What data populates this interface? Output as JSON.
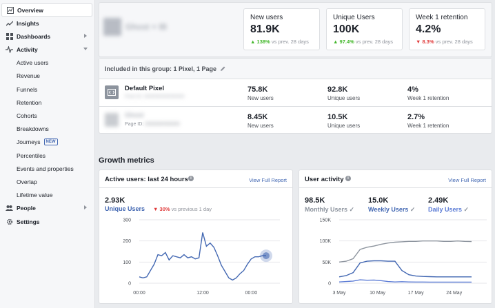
{
  "sidebar": {
    "items": [
      {
        "label": "Overview",
        "icon": "overview-icon",
        "level": "top",
        "active": true
      },
      {
        "label": "Insights",
        "icon": "insights-icon",
        "level": "top"
      },
      {
        "label": "Dashboards",
        "icon": "dashboards-icon",
        "level": "top",
        "chevron": "right"
      },
      {
        "label": "Activity",
        "icon": "activity-icon",
        "level": "top",
        "chevron": "down"
      },
      {
        "label": "Active users",
        "level": "sub"
      },
      {
        "label": "Revenue",
        "level": "sub"
      },
      {
        "label": "Funnels",
        "level": "sub"
      },
      {
        "label": "Retention",
        "level": "sub"
      },
      {
        "label": "Cohorts",
        "level": "sub"
      },
      {
        "label": "Breakdowns",
        "level": "sub"
      },
      {
        "label": "Journeys",
        "level": "sub",
        "badge": "NEW"
      },
      {
        "label": "Percentiles",
        "level": "sub"
      },
      {
        "label": "Events and properties",
        "level": "sub"
      },
      {
        "label": "Overlap",
        "level": "sub"
      },
      {
        "label": "Lifetime value",
        "level": "sub"
      },
      {
        "label": "People",
        "icon": "people-icon",
        "level": "top",
        "chevron": "right"
      },
      {
        "label": "Settings",
        "icon": "settings-icon",
        "level": "top"
      }
    ]
  },
  "header": {
    "app_name_blurred": "Ghost + IB",
    "kpis": [
      {
        "label": "New users",
        "value": "81.9K",
        "change": "138%",
        "direction": "up",
        "suffix": "vs prev. 28 days"
      },
      {
        "label": "Unique Users",
        "value": "100K",
        "change": "97.4%",
        "direction": "up",
        "suffix": "vs prev. 28 days"
      },
      {
        "label": "Week 1 retention",
        "value": "4.2%",
        "change": "8.3%",
        "direction": "down",
        "suffix": "vs prev. 28 days"
      }
    ]
  },
  "group": {
    "included_text": "Included in this group: 1 Pixel, 1 Page",
    "rows": [
      {
        "name": "Default Pixel",
        "sub_blurred": "Pixel ID: 000000000000000",
        "new_users": "75.8K",
        "new_users_label": "New users",
        "unique_users": "92.8K",
        "unique_users_label": "Unique users",
        "retention": "4%",
        "retention_label": "Week 1 retention"
      },
      {
        "name_blurred": "Ghost",
        "sub": "Page ID:",
        "sub_blurred": "0000000000000",
        "new_users": "8.45K",
        "new_users_label": "New users",
        "unique_users": "10.5K",
        "unique_users_label": "Unique users",
        "retention": "2.7%",
        "retention_label": "Week 1 retention"
      }
    ]
  },
  "growth": {
    "title": "Growth metrics",
    "active_users": {
      "title": "Active users: last 24 hours",
      "link": "View Full Report",
      "value": "2.93K",
      "metric": "Unique Users",
      "change": "30%",
      "direction": "down",
      "suffix": "vs previous 1 day"
    },
    "user_activity": {
      "title": "User activity",
      "link": "View Full Report",
      "metrics": [
        {
          "value": "98.5K",
          "label": "Monthly Users",
          "color": "#8d949e"
        },
        {
          "value": "15.0K",
          "label": "Weekly Users",
          "color": "#4267b2"
        },
        {
          "value": "2.49K",
          "label": "Daily Users",
          "color": "#5b7bd5"
        }
      ]
    }
  },
  "chart_data": [
    {
      "type": "line",
      "title": "Active users: last 24 hours",
      "x_ticks": [
        "00:00",
        "12:00",
        "00:00"
      ],
      "ylim": [
        0,
        300
      ],
      "y_ticks": [
        0,
        100,
        200,
        300
      ],
      "series": [
        {
          "name": "Unique Users",
          "color": "#4267b2",
          "x": [
            0,
            1,
            2,
            3,
            4,
            5,
            6,
            7,
            8,
            9,
            10,
            11,
            12,
            13,
            14,
            15,
            16,
            17,
            18,
            19,
            20,
            21,
            22,
            23,
            24,
            25,
            26,
            27,
            28,
            29,
            30,
            31,
            32,
            33,
            34
          ],
          "values": [
            30,
            25,
            30,
            60,
            90,
            135,
            130,
            145,
            110,
            130,
            125,
            120,
            135,
            120,
            125,
            115,
            120,
            240,
            175,
            190,
            170,
            130,
            85,
            55,
            25,
            15,
            25,
            45,
            60,
            90,
            115,
            125,
            125,
            130,
            130
          ]
        }
      ],
      "highlight_index": 34
    },
    {
      "type": "line",
      "title": "User activity",
      "x_ticks": [
        "3 May",
        "10 May",
        "17 May",
        "24 May"
      ],
      "ylim": [
        0,
        150000
      ],
      "y_ticks": [
        "0",
        "50K",
        "100K",
        "150K"
      ],
      "series": [
        {
          "name": "Monthly Users",
          "color": "#8d949e",
          "values": [
            50000,
            52000,
            58000,
            80000,
            85000,
            88000,
            92000,
            95000,
            97000,
            98000,
            99000,
            99000,
            100000,
            100000,
            100000,
            99000,
            99000,
            100000,
            99000,
            98500
          ]
        },
        {
          "name": "Weekly Users",
          "color": "#4267b2",
          "values": [
            15000,
            18000,
            25000,
            48000,
            52000,
            53000,
            53000,
            52000,
            52000,
            30000,
            20000,
            17000,
            16000,
            15500,
            15000,
            15000,
            15000,
            15000,
            15000,
            15000
          ]
        },
        {
          "name": "Daily Users",
          "color": "#5b7bd5",
          "values": [
            3000,
            4000,
            5000,
            8000,
            7000,
            7500,
            6000,
            4000,
            3000,
            3500,
            3000,
            2800,
            2700,
            2600,
            2500,
            2500,
            2500,
            2600,
            2500,
            2490
          ]
        }
      ]
    }
  ]
}
